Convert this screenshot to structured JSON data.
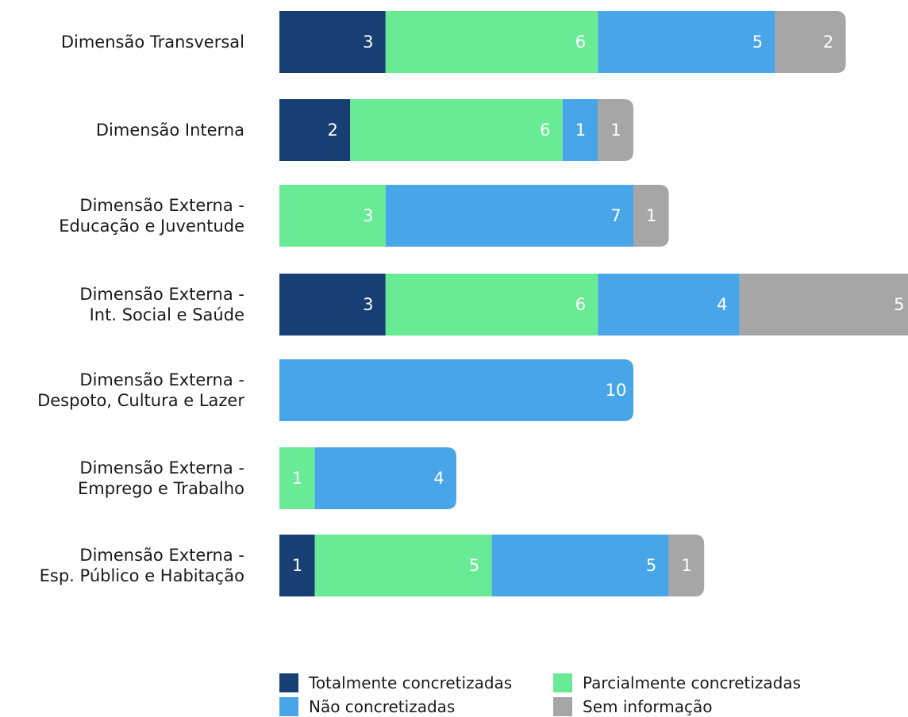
{
  "chart_data": {
    "type": "bar",
    "orientation": "horizontal",
    "stacked": true,
    "categories": [
      [
        "Dimensão Transversal"
      ],
      [
        "Dimensão Interna"
      ],
      [
        "Dimensão Externa -",
        "Educação e Juventude"
      ],
      [
        "Dimensão Externa -",
        "Int. Social e Saúde"
      ],
      [
        "Dimensão Externa -",
        "Despoto, Cultura e Lazer"
      ],
      [
        "Dimensão Externa -",
        "Emprego e Trabalho"
      ],
      [
        "Dimensão Externa -",
        "Esp. Público e Habitação"
      ]
    ],
    "series": [
      {
        "name": "Totalmente concretizadas",
        "color": "#173f73",
        "values": [
          3,
          2,
          0,
          3,
          0,
          0,
          1
        ]
      },
      {
        "name": "Parcialmente concretizadas",
        "color": "#69eb95",
        "values": [
          6,
          6,
          3,
          6,
          0,
          1,
          5
        ]
      },
      {
        "name": "Não concretizadas",
        "color": "#48a6e8",
        "values": [
          5,
          1,
          7,
          4,
          10,
          4,
          5
        ]
      },
      {
        "name": "Sem informação",
        "color": "#a6a6a6",
        "values": [
          2,
          1,
          1,
          5,
          0,
          0,
          1
        ]
      }
    ],
    "xlim": [
      0,
      18
    ],
    "grid": false,
    "legend_position": "bottom"
  }
}
